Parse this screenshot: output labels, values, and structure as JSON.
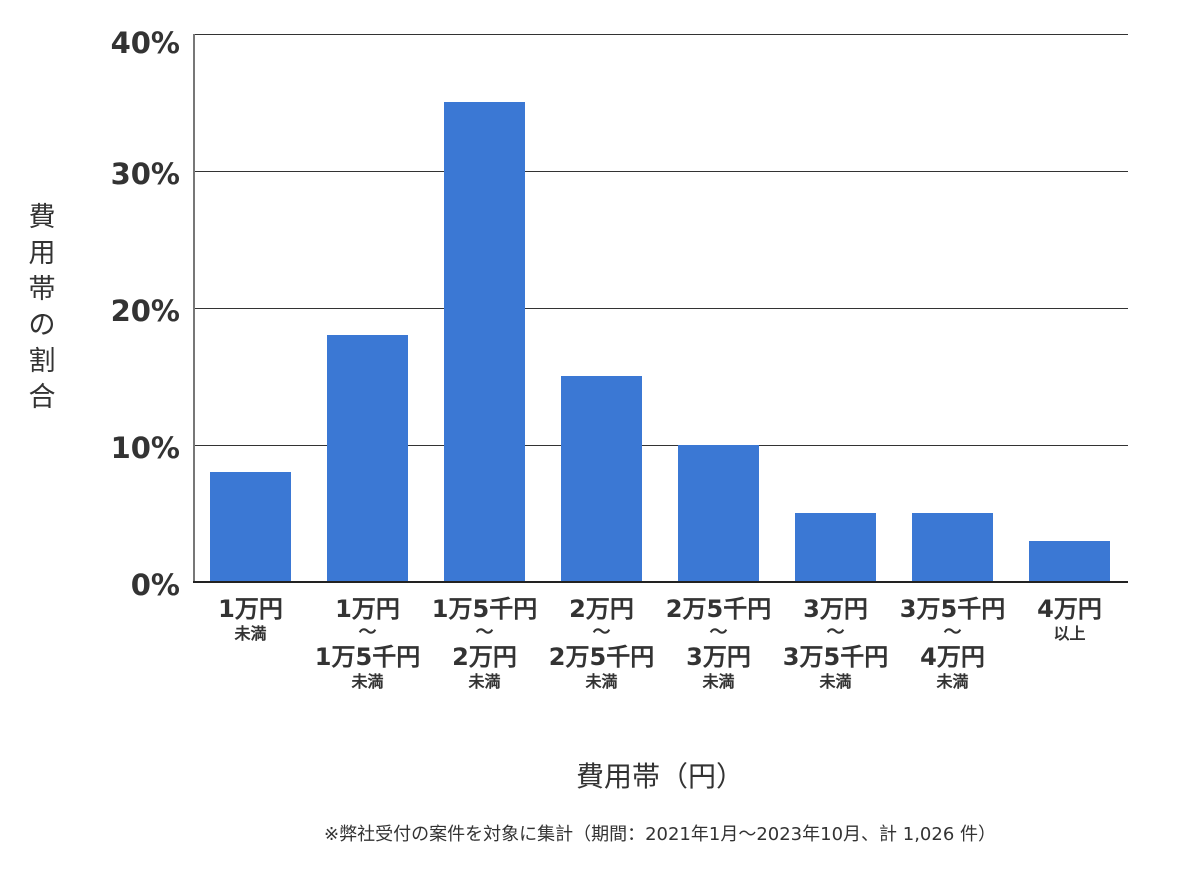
{
  "chart_data": {
    "type": "bar",
    "title": "",
    "xlabel": "費用帯（円）",
    "ylabel": "費用帯の割合",
    "ylim": [
      0,
      40
    ],
    "yticks": [
      "0%",
      "10%",
      "20%",
      "30%",
      "40%"
    ],
    "grid": true,
    "legend": null,
    "bar_color": "#3b78d4",
    "categories": [
      "1万円未満",
      "1万円〜1万5千円未満",
      "1万5千円〜2万円未満",
      "2万円〜2万5千円未満",
      "2万5千円〜3万円未満",
      "3万円〜3万5千円未満",
      "3万5千円〜4万円未満",
      "4万円以上"
    ],
    "values": [
      8,
      18,
      35,
      15,
      10,
      5,
      5,
      3
    ],
    "note": "※弊社受付の案件を対象に集計（期間：2021年1月〜2023年10月、計 1,026 件）"
  },
  "axis": {
    "y_label_chars": [
      "費",
      "用",
      "帯",
      "の",
      "割",
      "合"
    ],
    "y_ticks": [
      {
        "label": "40%",
        "value": 40
      },
      {
        "label": "30%",
        "value": 30
      },
      {
        "label": "20%",
        "value": 20
      },
      {
        "label": "10%",
        "value": 10
      },
      {
        "label": "0%",
        "value": 0
      }
    ],
    "x_title": "費用帯（円）"
  },
  "x_labels": [
    {
      "from": "1万円",
      "tilde": "",
      "to": "",
      "suffix": "未満"
    },
    {
      "from": "1万円",
      "tilde": "〜",
      "to": "1万5千円",
      "suffix": "未満"
    },
    {
      "from": "1万5千円",
      "tilde": "〜",
      "to": "2万円",
      "suffix": "未満"
    },
    {
      "from": "2万円",
      "tilde": "〜",
      "to": "2万5千円",
      "suffix": "未満"
    },
    {
      "from": "2万5千円",
      "tilde": "〜",
      "to": "3万円",
      "suffix": "未満"
    },
    {
      "from": "3万円",
      "tilde": "〜",
      "to": "3万5千円",
      "suffix": "未満"
    },
    {
      "from": "3万5千円",
      "tilde": "〜",
      "to": "4万円",
      "suffix": "未満"
    },
    {
      "from": "4万円",
      "tilde": "",
      "to": "",
      "suffix": "以上"
    }
  ],
  "footnote": "※弊社受付の案件を対象に集計（期間：2021年1月〜2023年10月、計 1,026 件）"
}
